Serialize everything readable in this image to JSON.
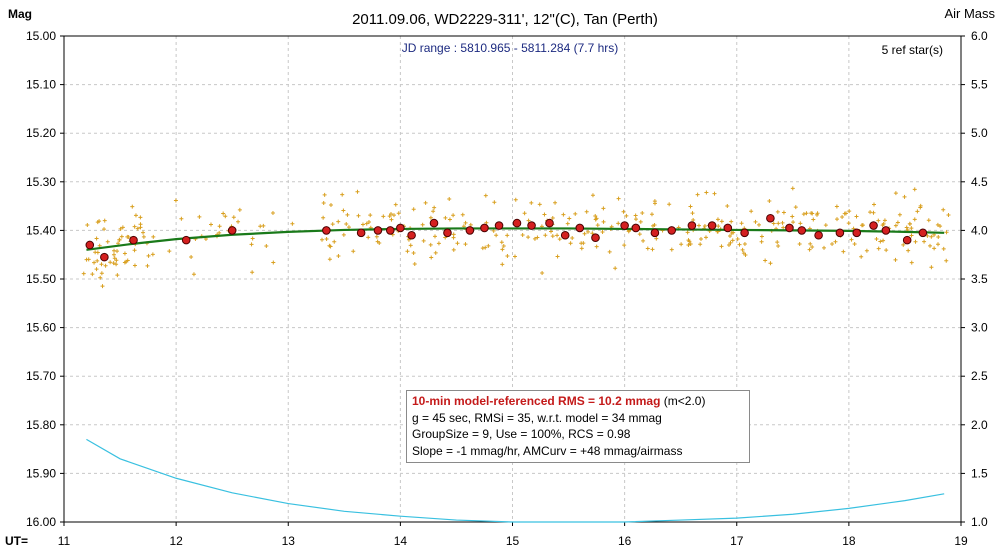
{
  "chart_data": {
    "type": "scatter",
    "title": "2011.09.06, WD2229-311', 12\"(C), Tan (Perth)",
    "ylabel": "Mag",
    "y2label": "Air Mass",
    "xlabel": "UT=",
    "xlim": [
      11,
      19
    ],
    "ylim": [
      16.0,
      15.0
    ],
    "y2lim": [
      1.0,
      6.0
    ],
    "x_ticks": [
      "11",
      "12",
      "13",
      "14",
      "15",
      "16",
      "17",
      "18",
      "19"
    ],
    "y_ticks": [
      "15.00",
      "15.10",
      "15.20",
      "15.30",
      "15.40",
      "15.50",
      "15.60",
      "15.70",
      "15.80",
      "15.90",
      "16.00"
    ],
    "y2_ticks": [
      "6.0",
      "5.5",
      "5.0",
      "4.5",
      "4.0",
      "3.5",
      "3.0",
      "2.5",
      "2.0",
      "1.5",
      "1.0"
    ],
    "grid": true,
    "jd_range": "JD range : 5810.965 - 5811.284 (7.7 hrs)",
    "ref_stars": "5 ref star(s)",
    "info_box": {
      "line1_rms": "10-min model-referenced RMS = 10.2 mmag",
      "line1_cond": "(m<2.0)",
      "line2": "g = 45 sec, RMSi = 35, w.r.t. model = 34 mmag",
      "line3": "GroupSize = 9, Use = 100%, RCS = 0.98",
      "line4": "Slope = -1 mmag/hr, AMCurv = +48 mmag/airmass"
    },
    "colors": {
      "individual": "#d9a020",
      "group": "#d42020",
      "model": "#1a7a1a",
      "airmass": "#39c0e0",
      "grid": "#c8c8c8"
    },
    "series": [
      {
        "kind": "group_means",
        "x": [
          11.23,
          11.36,
          11.62,
          12.09,
          12.5,
          13.34,
          13.65,
          13.8,
          13.91,
          14.0,
          14.1,
          14.3,
          14.42,
          14.62,
          14.75,
          14.88,
          15.04,
          15.17,
          15.33,
          15.47,
          15.6,
          15.74,
          16.0,
          16.1,
          16.27,
          16.42,
          16.6,
          16.78,
          16.92,
          17.07,
          17.3,
          17.47,
          17.58,
          17.73,
          17.92,
          18.07,
          18.22,
          18.33,
          18.52,
          18.66
        ],
        "y": [
          15.43,
          15.455,
          15.42,
          15.42,
          15.4,
          15.4,
          15.405,
          15.4,
          15.4,
          15.395,
          15.41,
          15.385,
          15.405,
          15.4,
          15.395,
          15.39,
          15.385,
          15.39,
          15.385,
          15.41,
          15.395,
          15.415,
          15.39,
          15.395,
          15.405,
          15.4,
          15.39,
          15.39,
          15.395,
          15.405,
          15.375,
          15.395,
          15.4,
          15.41,
          15.405,
          15.405,
          15.39,
          15.4,
          15.42,
          15.405
        ]
      },
      {
        "kind": "model",
        "x": [
          11.2,
          11.6,
          12.0,
          12.5,
          13.0,
          13.5,
          14.0,
          14.5,
          15.0,
          15.5,
          16.0,
          16.5,
          17.0,
          17.5,
          18.0,
          18.5,
          18.85
        ],
        "y": [
          15.44,
          15.428,
          15.418,
          15.409,
          15.403,
          15.399,
          15.397,
          15.396,
          15.396,
          15.396,
          15.397,
          15.398,
          15.399,
          15.4,
          15.401,
          15.403,
          15.405
        ]
      },
      {
        "kind": "airmass",
        "x": [
          11.2,
          11.5,
          12.0,
          12.5,
          13.0,
          13.5,
          14.0,
          14.5,
          15.0,
          15.5,
          16.0,
          16.5,
          17.0,
          17.5,
          18.0,
          18.5,
          18.85
        ],
        "y": [
          1.85,
          1.65,
          1.45,
          1.3,
          1.19,
          1.11,
          1.06,
          1.02,
          1.0,
          0.99,
          1.0,
          1.02,
          1.04,
          1.08,
          1.14,
          1.22,
          1.29
        ]
      }
    ]
  }
}
